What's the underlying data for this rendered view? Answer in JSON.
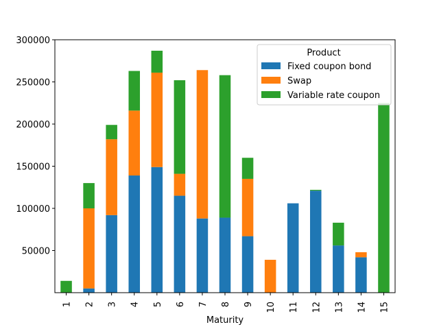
{
  "chart_data": {
    "type": "bar",
    "stacked": true,
    "xlabel": "Maturity",
    "ylabel": "",
    "ylim": [
      0,
      300000
    ],
    "yticks": [
      50000,
      100000,
      150000,
      200000,
      250000,
      300000
    ],
    "categories": [
      "1",
      "2",
      "3",
      "4",
      "5",
      "6",
      "7",
      "8",
      "9",
      "10",
      "11",
      "12",
      "13",
      "14",
      "15"
    ],
    "legend": {
      "title": "Product",
      "placement": "top-right",
      "entries": [
        "Fixed coupon bond",
        "Swap",
        "Variable rate coupon"
      ]
    },
    "series": [
      {
        "name": "Fixed coupon bond",
        "color": "#1f77b4",
        "values": [
          0,
          5000,
          92000,
          139000,
          149000,
          115000,
          88000,
          89000,
          67000,
          0,
          106000,
          121000,
          56000,
          42000,
          0
        ]
      },
      {
        "name": "Swap",
        "color": "#ff7f0e",
        "values": [
          0,
          95000,
          90000,
          77000,
          112000,
          26000,
          176000,
          0,
          68000,
          39000,
          0,
          0,
          0,
          6000,
          0
        ]
      },
      {
        "name": "Variable rate coupon",
        "color": "#2ca02c",
        "values": [
          14000,
          30000,
          17000,
          47000,
          26000,
          111000,
          0,
          169000,
          25000,
          0,
          0,
          1000,
          27000,
          0,
          225000
        ]
      }
    ]
  }
}
